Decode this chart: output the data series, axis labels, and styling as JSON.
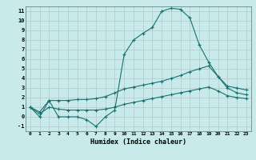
{
  "xlabel": "Humidex (Indice chaleur)",
  "background_color": "#c8eaea",
  "grid_color": "#b0c8c8",
  "line_color": "#1a7070",
  "xlim": [
    -0.5,
    23.5
  ],
  "ylim": [
    -1.5,
    11.5
  ],
  "xtick_labels": [
    "0",
    "1",
    "2",
    "3",
    "4",
    "5",
    "6",
    "7",
    "8",
    "9",
    "10",
    "11",
    "12",
    "13",
    "14",
    "15",
    "16",
    "17",
    "18",
    "19",
    "20",
    "21",
    "22",
    "23"
  ],
  "ytick_labels": [
    "-1",
    "0",
    "1",
    "2",
    "3",
    "4",
    "5",
    "6",
    "7",
    "8",
    "9",
    "10",
    "11"
  ],
  "line1_x": [
    0,
    1,
    2,
    3,
    4,
    5,
    6,
    7,
    8,
    9,
    10,
    11,
    12,
    13,
    14,
    15,
    16,
    17,
    18,
    19,
    20,
    21,
    22,
    23
  ],
  "line1_y": [
    1.0,
    0.0,
    1.7,
    0.0,
    0.0,
    0.0,
    -0.3,
    -1.0,
    0.0,
    0.7,
    6.5,
    8.0,
    8.7,
    9.3,
    11.0,
    11.3,
    11.2,
    10.3,
    7.5,
    5.7,
    4.2,
    3.0,
    2.5,
    2.3
  ],
  "line2_x": [
    0,
    1,
    2,
    3,
    4,
    5,
    6,
    7,
    8,
    9,
    10,
    11,
    12,
    13,
    14,
    15,
    16,
    17,
    18,
    19,
    20,
    21,
    22,
    23
  ],
  "line2_y": [
    1.0,
    0.5,
    1.7,
    1.7,
    1.7,
    1.8,
    1.8,
    1.9,
    2.1,
    2.5,
    2.9,
    3.1,
    3.3,
    3.5,
    3.7,
    4.0,
    4.3,
    4.7,
    5.0,
    5.3,
    4.2,
    3.2,
    3.0,
    2.8
  ],
  "line3_x": [
    0,
    1,
    2,
    3,
    4,
    5,
    6,
    7,
    8,
    9,
    10,
    11,
    12,
    13,
    14,
    15,
    16,
    17,
    18,
    19,
    20,
    21,
    22,
    23
  ],
  "line3_y": [
    1.0,
    0.3,
    1.0,
    0.8,
    0.7,
    0.7,
    0.7,
    0.7,
    0.8,
    1.0,
    1.3,
    1.5,
    1.7,
    1.9,
    2.1,
    2.3,
    2.5,
    2.7,
    2.9,
    3.1,
    2.7,
    2.2,
    2.0,
    1.9
  ]
}
